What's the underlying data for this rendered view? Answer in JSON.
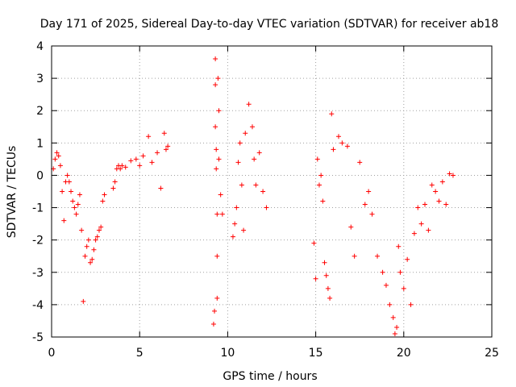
{
  "chart_data": {
    "type": "scatter",
    "title": "Day 171 of 2025, Sidereal Day-to-day VTEC variation (SDTVAR) for receiver ab18",
    "xlabel": "GPS time / hours",
    "ylabel": "SDTVAR / TECUs",
    "xlim": [
      0,
      25
    ],
    "ylim": [
      -5,
      4
    ],
    "xticks": [
      0,
      5,
      10,
      15,
      20,
      25
    ],
    "yticks": [
      -5,
      -4,
      -3,
      -2,
      -1,
      0,
      1,
      2,
      3,
      4
    ],
    "grid": true,
    "marker": "+",
    "color": "#ff0000",
    "series": [
      {
        "name": "SDTVAR",
        "x": [
          0.1,
          0.2,
          0.3,
          0.4,
          0.5,
          0.6,
          0.7,
          0.8,
          0.9,
          1.0,
          1.1,
          1.2,
          1.3,
          1.4,
          1.5,
          1.6,
          1.7,
          1.8,
          1.9,
          2.0,
          2.1,
          2.2,
          2.3,
          2.4,
          2.5,
          2.6,
          2.7,
          2.8,
          2.9,
          3.0,
          3.5,
          3.6,
          3.7,
          3.8,
          3.9,
          4.0,
          4.2,
          4.5,
          4.8,
          5.0,
          5.2,
          5.5,
          5.7,
          6.0,
          6.2,
          6.4,
          6.5,
          6.6,
          9.2,
          9.25,
          9.3,
          9.3,
          9.3,
          9.35,
          9.35,
          9.4,
          9.4,
          9.4,
          9.45,
          9.5,
          9.5,
          9.6,
          9.7,
          10.3,
          10.4,
          10.5,
          10.6,
          10.7,
          10.8,
          10.9,
          11.0,
          11.2,
          11.4,
          11.5,
          11.6,
          11.8,
          12.0,
          12.2,
          14.9,
          15.0,
          15.1,
          15.2,
          15.3,
          15.4,
          15.5,
          15.6,
          15.7,
          15.8,
          15.9,
          16.0,
          16.3,
          16.5,
          16.8,
          17.0,
          17.2,
          17.5,
          17.8,
          18.0,
          18.2,
          18.5,
          18.8,
          19.0,
          19.2,
          19.4,
          19.5,
          19.6,
          19.7,
          19.8,
          20.0,
          20.2,
          20.4,
          20.6,
          20.8,
          21.0,
          21.2,
          21.4,
          21.6,
          21.8,
          22.0,
          22.2,
          22.4,
          22.6,
          22.8
        ],
        "y": [
          0.2,
          0.5,
          0.7,
          0.6,
          0.3,
          -0.5,
          -1.4,
          -0.2,
          0.0,
          -0.2,
          -0.5,
          -0.8,
          -1.0,
          -1.2,
          -0.9,
          -0.6,
          -1.7,
          -3.9,
          -2.5,
          -2.2,
          -2.0,
          -2.7,
          -2.6,
          -2.3,
          -2.0,
          -1.9,
          -1.7,
          -1.6,
          -0.8,
          -0.6,
          -0.4,
          -0.2,
          0.2,
          0.3,
          0.2,
          0.3,
          0.25,
          0.45,
          0.5,
          0.3,
          0.6,
          1.2,
          0.4,
          0.7,
          -0.4,
          1.3,
          0.8,
          0.9,
          -4.6,
          -4.2,
          3.6,
          2.8,
          1.5,
          0.8,
          0.2,
          -1.2,
          -2.5,
          -3.8,
          3.0,
          2.0,
          0.5,
          -0.6,
          -1.2,
          -1.9,
          -1.5,
          -1.0,
          0.4,
          1.0,
          -0.3,
          -1.7,
          1.3,
          2.2,
          1.5,
          0.5,
          -0.3,
          0.7,
          -0.5,
          -1.0,
          -2.1,
          -3.2,
          0.5,
          -0.3,
          0.0,
          -0.8,
          -2.7,
          -3.1,
          -3.5,
          -3.8,
          1.9,
          0.8,
          1.2,
          1.0,
          0.9,
          -1.6,
          -2.5,
          0.4,
          -0.9,
          -0.5,
          -1.2,
          -2.5,
          -3.0,
          -3.4,
          -4.0,
          -4.4,
          -4.9,
          -4.7,
          -2.2,
          -3.0,
          -3.5,
          -2.6,
          -4.0,
          -1.8,
          -1.0,
          -1.5,
          -0.9,
          -1.7,
          -0.3,
          -0.5,
          -0.8,
          -0.2,
          -0.9,
          0.05,
          0.0
        ]
      }
    ]
  }
}
